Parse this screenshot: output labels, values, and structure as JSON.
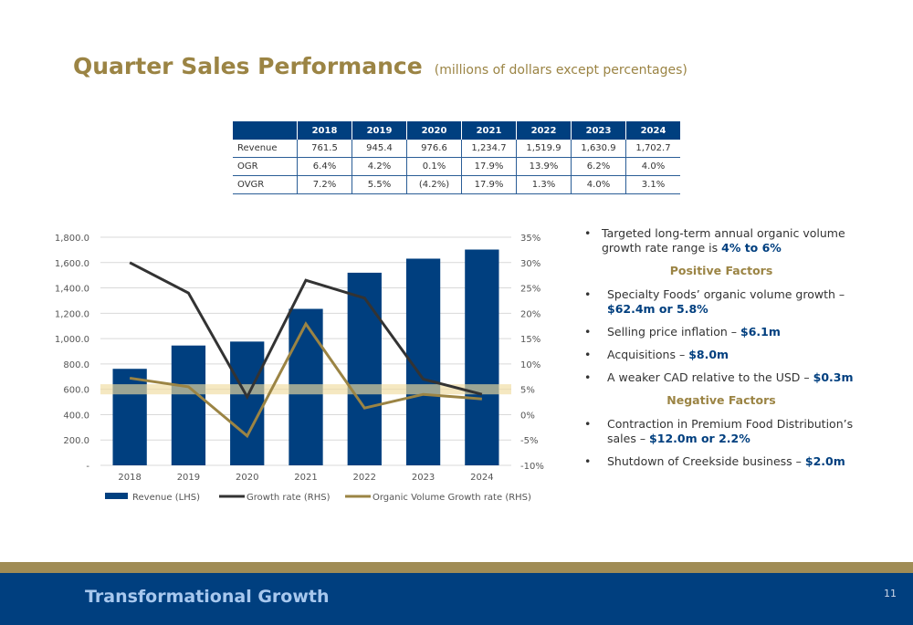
{
  "slide": {
    "title": "Quarter Sales Performance",
    "subtitle": "(millions of dollars except percentages)",
    "footer_title": "Transformational Growth",
    "page_number": "11"
  },
  "table": {
    "headers": [
      "",
      "2018",
      "2019",
      "2020",
      "2021",
      "2022",
      "2023",
      "2024"
    ],
    "rows": [
      [
        "Revenue",
        "761.5",
        "945.4",
        "976.6",
        "1,234.7",
        "1,519.9",
        "1,630.9",
        "1,702.7"
      ],
      [
        "OGR",
        "6.4%",
        "4.2%",
        "0.1%",
        "17.9%",
        "13.9%",
        "6.2%",
        "4.0%"
      ],
      [
        "OVGR",
        "7.2%",
        "5.5%",
        "(4.2%)",
        "17.9%",
        "1.3%",
        "4.0%",
        "3.1%"
      ]
    ]
  },
  "chart_data": {
    "type": "bar",
    "categories": [
      "2018",
      "2019",
      "2020",
      "2021",
      "2022",
      "2023",
      "2024"
    ],
    "series": [
      {
        "name": "Revenue (LHS)",
        "type": "bar",
        "axis": "left",
        "values": [
          761.5,
          945.4,
          976.6,
          1234.7,
          1519.9,
          1630.9,
          1702.7
        ],
        "color": "#003f7f"
      },
      {
        "name": "Growth rate (RHS)",
        "type": "line",
        "axis": "right",
        "values": [
          30.0,
          24.0,
          3.5,
          26.5,
          23.0,
          7.0,
          4.0
        ],
        "color": "#333333"
      },
      {
        "name": "Organic Volume Growth rate (RHS)",
        "type": "line",
        "axis": "right",
        "values": [
          7.2,
          5.5,
          -4.2,
          17.9,
          1.3,
          4.0,
          3.1
        ],
        "color": "#9b8444"
      }
    ],
    "left_axis": {
      "ylim": [
        0,
        1800
      ],
      "ticks": [
        0,
        200,
        400,
        600,
        800,
        1000,
        1200,
        1400,
        1600,
        1800
      ],
      "tick_labels": [
        "-",
        "200.0",
        "400.0",
        "600.0",
        "800.0",
        "1,000.0",
        "1,200.0",
        "1,400.0",
        "1,600.0",
        "1,800.0"
      ]
    },
    "right_axis": {
      "ylim": [
        -10,
        35
      ],
      "ticks": [
        -10,
        -5,
        0,
        5,
        10,
        15,
        20,
        25,
        30,
        35
      ],
      "tick_labels": [
        "-10%",
        "-5%",
        "0%",
        "5%",
        "10%",
        "15%",
        "20%",
        "25%",
        "30%",
        "35%"
      ]
    },
    "target_band": {
      "from": 4,
      "to": 6,
      "axis": "right",
      "color": "#f0dca0"
    },
    "grid": true,
    "legend_position": "bottom"
  },
  "bullets": {
    "intro_text": "Targeted long-term annual organic volume growth rate range is ",
    "intro_highlight": "4% to 6%",
    "positive_heading": "Positive Factors",
    "positive": [
      {
        "text": "Specialty Foods’ organic volume growth – ",
        "highlight": "$62.4m or 5.8%"
      },
      {
        "text": "Selling price inflation – ",
        "highlight": "$6.1m"
      },
      {
        "text": "Acquisitions – ",
        "highlight": "$8.0m"
      },
      {
        "text": "A weaker CAD relative to the USD – ",
        "highlight": "$0.3m"
      }
    ],
    "negative_heading": "Negative Factors",
    "negative": [
      {
        "text": "Contraction in Premium Food Distribution’s sales – ",
        "highlight": "$12.0m or 2.2%"
      },
      {
        "text": "Shutdown of Creekside business – ",
        "highlight": "$2.0m"
      }
    ],
    "bullet_glyph": "•"
  }
}
